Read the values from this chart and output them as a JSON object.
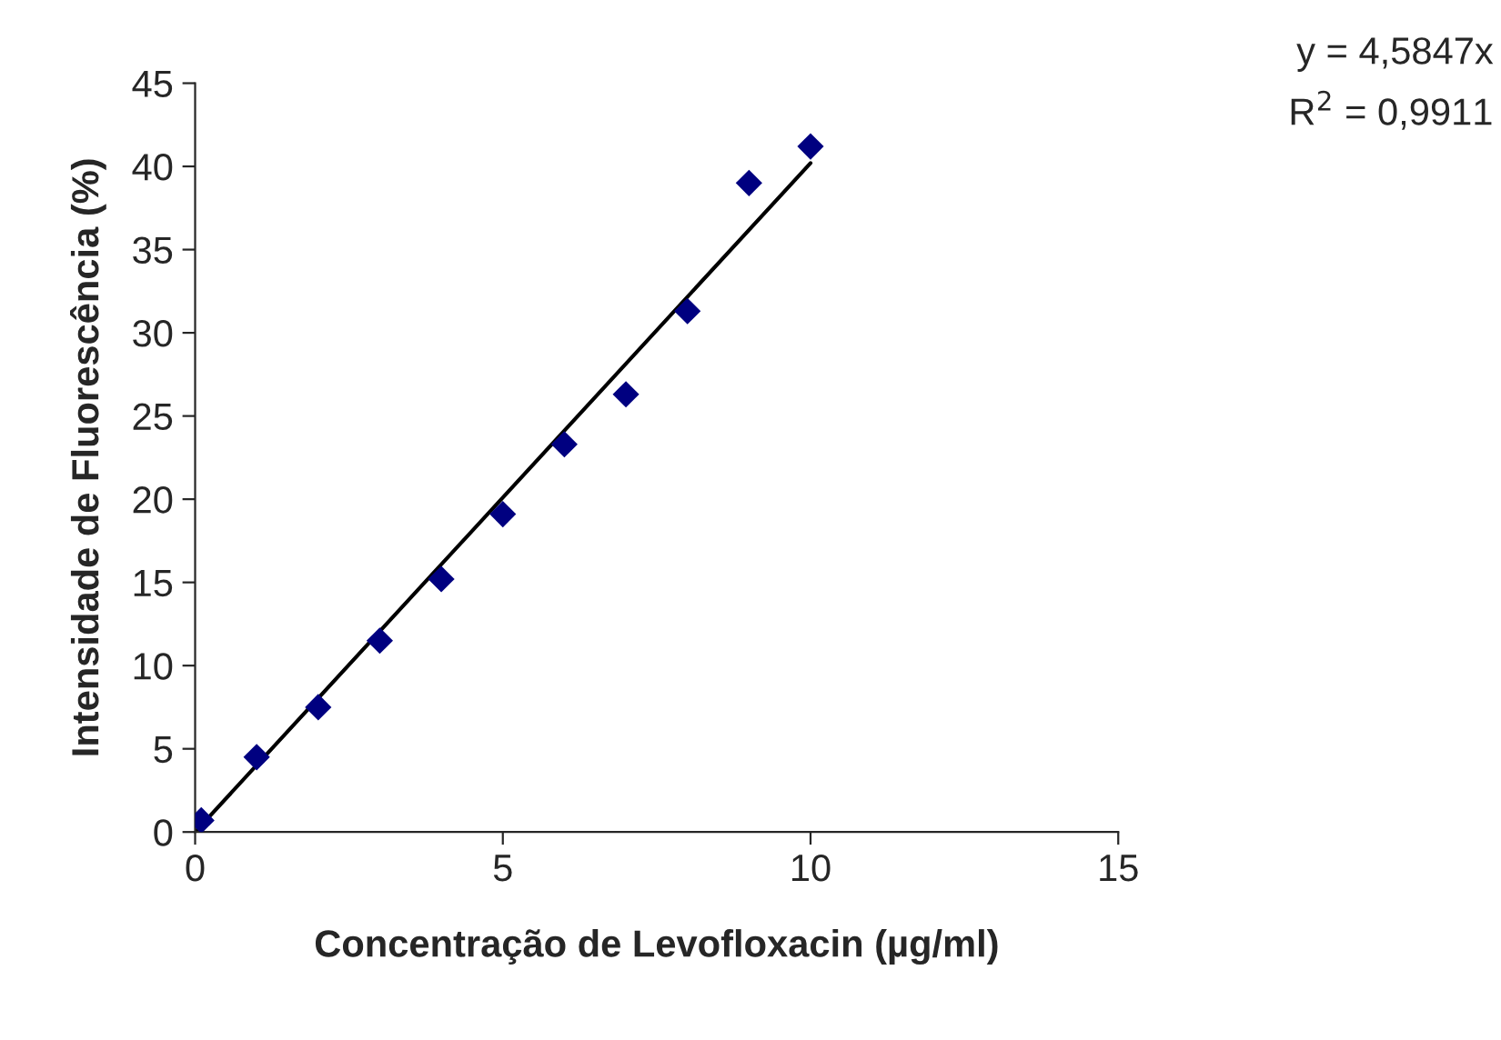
{
  "chart_data": {
    "type": "scatter",
    "xlabel": "Concentração de Levofloxacin (µg/ml)",
    "ylabel": "Intensidade de Fluorescência (%)",
    "x": [
      0.1,
      1,
      2,
      3,
      4,
      5,
      6,
      7,
      8,
      9,
      10
    ],
    "series": [
      {
        "color": "#000080",
        "marker": "diamond",
        "values": [
          0.7,
          4.5,
          7.5,
          11.5,
          15.2,
          19.1,
          23.3,
          26.3,
          31.3,
          39.0,
          41.2
        ]
      },
      {
        "type": "line",
        "color": "#000000",
        "x": [
          0,
          10
        ],
        "values": [
          0,
          40.2
        ]
      }
    ],
    "annotations": [
      "y = 4,5847x",
      "R$^{2}$ = 0,9911"
    ],
    "xlim": [
      0,
      15
    ],
    "xticks": [
      0,
      5,
      10,
      15
    ],
    "ylim": [
      0,
      45
    ],
    "yticks": [
      0,
      5,
      10,
      15,
      20,
      25,
      30,
      35,
      40,
      45
    ],
    "grid": false,
    "legend": false
  }
}
